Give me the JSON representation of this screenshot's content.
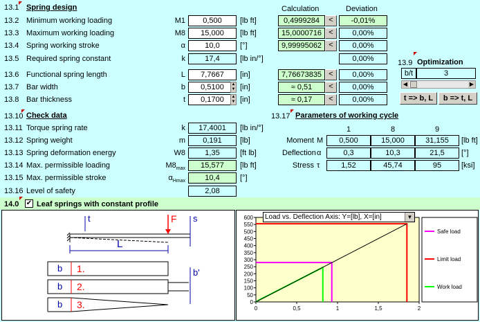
{
  "design": {
    "section_num": "13.1",
    "title": "Spring design",
    "calc_header": "Calculation",
    "dev_header": "Deviation",
    "rows": [
      {
        "num": "13.2",
        "label": "Minimum working loading",
        "sym": "M1",
        "value": "0,500",
        "unit": "[lb ft]",
        "calc": "0,4999284",
        "dev": "-0,01%"
      },
      {
        "num": "13.3",
        "label": "Maximum working loading",
        "sym": "M8",
        "value": "15,000",
        "unit": "[lb ft]",
        "calc": "15,0000716",
        "dev": "0,00%"
      },
      {
        "num": "13.4",
        "label": "Spring working stroke",
        "sym": "α",
        "value": "10,0",
        "unit": "[°]",
        "calc": "9,99995062",
        "dev": "0,00%"
      },
      {
        "num": "13.5",
        "label": "Required spring constant",
        "sym": "k",
        "value": "17,4",
        "unit": "[lb in/°]",
        "calc": "",
        "dev": "0,00%"
      },
      {
        "num": "13.6",
        "label": "Functional spring length",
        "sym": "L",
        "value": "7,7667",
        "unit": "[in]",
        "calc": "7,76673835",
        "dev": "0,00%"
      },
      {
        "num": "13.7",
        "label": "Bar width",
        "sym": "b",
        "value": "0,5100",
        "unit": "[in]",
        "calc": "≈  0,51",
        "dev": "0,00%"
      },
      {
        "num": "13.8",
        "label": "Bar thickness",
        "sym": "t",
        "value": "0,1700",
        "unit": "[in]",
        "calc": "≈  0,17",
        "dev": "0,00%"
      }
    ],
    "lt_label": "<"
  },
  "optimization": {
    "num": "13.9",
    "title": "Optimization",
    "label": "b/t",
    "value": "3",
    "btn1": "t => b, L",
    "btn2": "b => t, L"
  },
  "check": {
    "num": "13.10",
    "title": "Check data",
    "rows": [
      {
        "num": "13.11",
        "label": "Torque spring rate",
        "sym": "k",
        "value": "17,4001",
        "unit": "[lb in/°]"
      },
      {
        "num": "13.12",
        "label": "Spring weight",
        "sym": "m",
        "value": "0,191",
        "unit": "[lb]"
      },
      {
        "num": "13.13",
        "label": "Spring deformation energy",
        "sym": "W8",
        "value": "1,35",
        "unit": "[ft lb]"
      },
      {
        "num": "13.14",
        "label": "Max. permissible loading",
        "sym": "M8",
        "sub": "max",
        "value": "15,577",
        "unit": "[lb ft]"
      },
      {
        "num": "13.15",
        "label": "Max. permissible stroke",
        "sym": "α",
        "sub": "Hmax",
        "value": "10,4",
        "unit": "[°]"
      },
      {
        "num": "13.16",
        "label": "Level of safety",
        "sym": "",
        "value": "2,08",
        "unit": ""
      }
    ]
  },
  "cycle": {
    "num": "13.17",
    "title": "Parameters of working cycle",
    "cols": [
      "1",
      "8",
      "9"
    ],
    "rows": [
      {
        "label": "Moment",
        "sym": "M",
        "values": [
          "0,500",
          "15,000",
          "31,155"
        ],
        "unit": "[lb ft]"
      },
      {
        "label": "Deflection",
        "sym": "α",
        "values": [
          "0,3",
          "10,3",
          "21,5"
        ],
        "unit": "[°]"
      },
      {
        "label": "Stress",
        "sym": "τ",
        "values": [
          "1,52",
          "45,74",
          "95"
        ],
        "unit": "[ksi]"
      }
    ]
  },
  "leaf": {
    "num": "14.0",
    "title": "Leaf springs with constant profile",
    "checked": true
  },
  "diagram": {
    "t": "t",
    "F": "F",
    "s": "s",
    "L": "L",
    "b": "b",
    "bprime": "b'",
    "n1": "1.",
    "n2": "2.",
    "n3": "3."
  },
  "chart_data": {
    "type": "line",
    "dropdown": "Load vs. Deflection   Axis: Y=[lb], X=[in]",
    "xlim": [
      0,
      2
    ],
    "ylim": [
      0,
      600
    ],
    "xticks": [
      "0",
      "0,5",
      "1",
      "1,5",
      "2"
    ],
    "yticks": [
      "0",
      "50",
      "100",
      "150",
      "200",
      "250",
      "300",
      "350",
      "400",
      "450",
      "500",
      "550",
      "600"
    ],
    "series": [
      {
        "name": "Safe load",
        "color": "#ff00ff",
        "x": [
          0,
          0.93,
          0.93
        ],
        "y": [
          280,
          280,
          0
        ]
      },
      {
        "name": "Limit load",
        "color": "#ff0000",
        "x": [
          0,
          1.85,
          1.85
        ],
        "y": [
          555,
          555,
          0
        ]
      },
      {
        "name": "Work load",
        "color": "#00ff00",
        "x": [
          0,
          0.05,
          0.82,
          0.82
        ],
        "y": [
          0,
          17,
          245,
          0
        ]
      },
      {
        "name": "",
        "color": "#000000",
        "x": [
          0,
          1.85
        ],
        "y": [
          0,
          555
        ]
      }
    ],
    "legend": [
      "Safe load",
      "Limit load",
      "Work load"
    ]
  }
}
